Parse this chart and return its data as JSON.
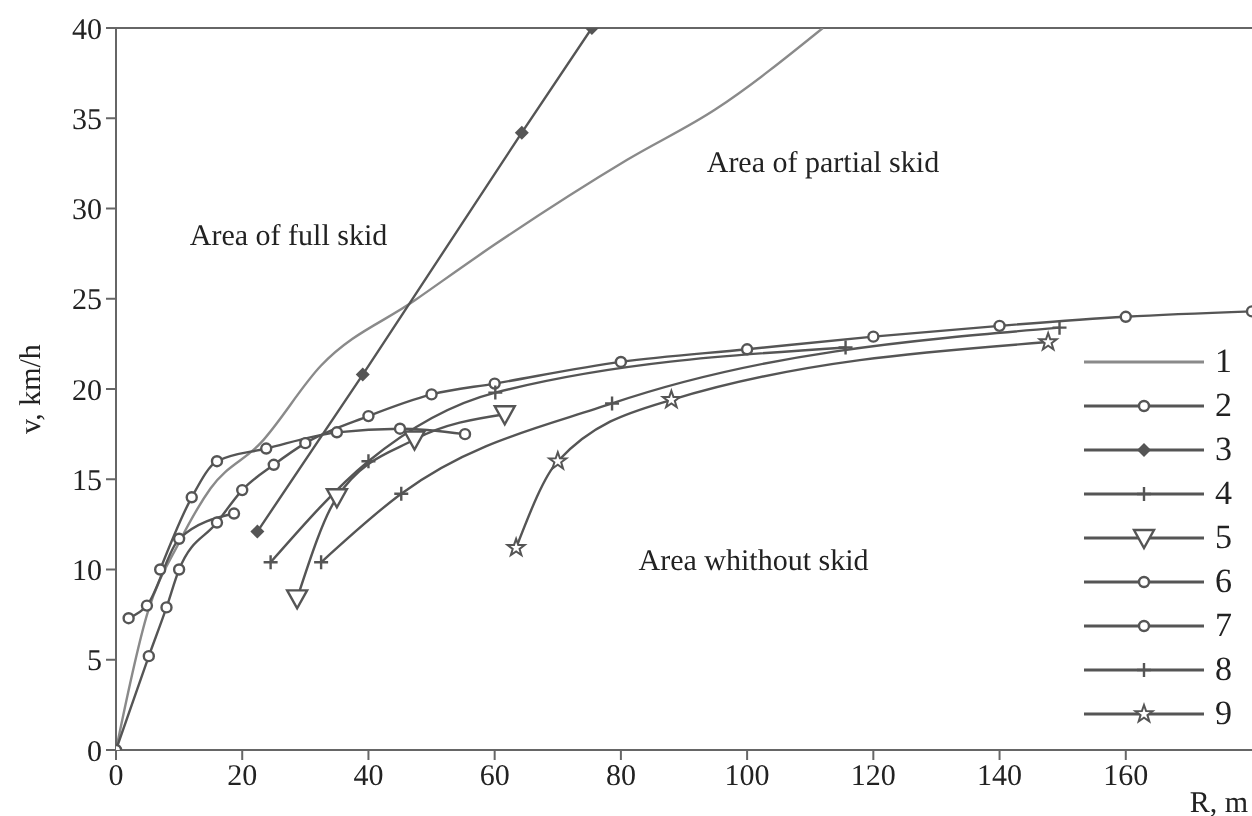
{
  "chart_data": {
    "type": "line",
    "xlabel": "R, m",
    "ylabel": "v, km/h",
    "xlim": [
      0,
      180
    ],
    "xticks": [
      0,
      20,
      40,
      60,
      80,
      100,
      120,
      140,
      160
    ],
    "ylim": [
      0,
      40
    ],
    "yticks": [
      0,
      5,
      10,
      15,
      20,
      25,
      30,
      35,
      40
    ],
    "grid": false,
    "legend": "bottom right",
    "line_style": "solid",
    "annotations": [
      "Area of full skid",
      "Area of partial skid",
      "Area whithout skid"
    ],
    "series": [
      {
        "name": "1",
        "color": "#8a8a8a",
        "marker": "none",
        "x": [
          0,
          5,
          10,
          15,
          22.9,
          32.5,
          47.3,
          60,
          81,
          95,
          112
        ],
        "values": [
          0,
          7.6,
          11.5,
          14.5,
          17,
          21.3,
          24.9,
          28,
          32.7,
          35.5,
          40
        ]
      },
      {
        "name": "2",
        "color": "#555555",
        "marker": "circle",
        "x": [
          0,
          5.2,
          8,
          10,
          16,
          20,
          25,
          30,
          40,
          50,
          60,
          80,
          100,
          120,
          140,
          160,
          180
        ],
        "values": [
          0,
          5.2,
          7.9,
          10,
          12.6,
          14.4,
          15.8,
          17,
          18.5,
          19.7,
          20.3,
          21.5,
          22.2,
          22.9,
          23.5,
          24,
          24.3
        ]
      },
      {
        "name": "3",
        "color": "#555555",
        "marker": "diamond",
        "x": [
          22.4,
          39.1,
          64.3,
          75.4
        ],
        "values": [
          12.1,
          20.8,
          34.2,
          40
        ]
      },
      {
        "name": "4",
        "color": "#555555",
        "marker": "cross",
        "x": [
          32.5,
          45.2,
          78.6,
          149.5
        ],
        "values": [
          10.4,
          14.2,
          19.2,
          23.4
        ]
      },
      {
        "name": "5",
        "color": "#555555",
        "marker": "triangle",
        "x": [
          28.7,
          35,
          47.3,
          61.6
        ],
        "values": [
          8.4,
          14,
          17.2,
          18.6
        ]
      },
      {
        "name": "6",
        "color": "#555555",
        "marker": "circle",
        "x": [
          7,
          12,
          16,
          23.8,
          35,
          45,
          55.3
        ],
        "values": [
          10,
          14,
          16,
          16.7,
          17.6,
          17.8,
          17.5
        ]
      },
      {
        "name": "7",
        "color": "#555555",
        "marker": "circle",
        "x": [
          2,
          4.9,
          10,
          18.7
        ],
        "values": [
          7.3,
          8,
          11.7,
          13.1
        ]
      },
      {
        "name": "8",
        "color": "#555555",
        "marker": "cross",
        "x": [
          24.5,
          40,
          60.1,
          115.6
        ],
        "values": [
          10.4,
          16,
          19.8,
          22.3
        ]
      },
      {
        "name": "9",
        "color": "#555555",
        "marker": "star",
        "x": [
          63.4,
          70,
          88,
          147.7
        ],
        "values": [
          11.2,
          16,
          19.4,
          22.6
        ]
      }
    ]
  }
}
